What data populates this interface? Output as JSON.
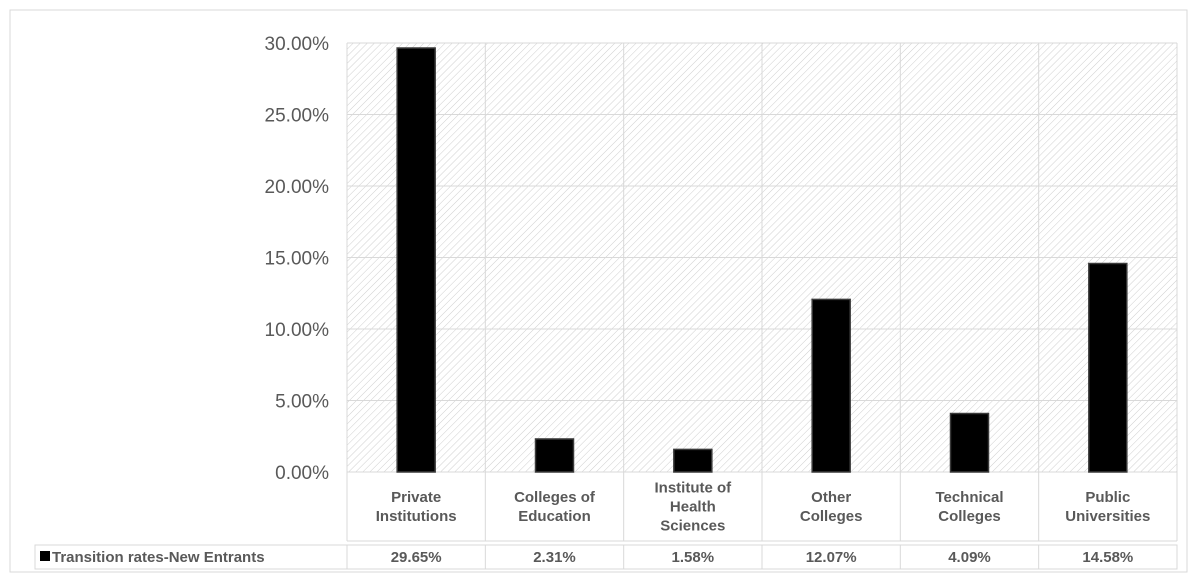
{
  "chart_data": {
    "type": "bar",
    "title": "",
    "xlabel": "",
    "ylabel": "",
    "categories": [
      [
        "Private",
        "Institutions"
      ],
      [
        "Colleges of",
        "Education"
      ],
      [
        "Institute of",
        "Health",
        "Sciences"
      ],
      [
        "Other",
        "Colleges"
      ],
      [
        "Technical",
        "Colleges"
      ],
      [
        "Public",
        "Universities"
      ]
    ],
    "series": [
      {
        "name": "Transition rates-New Entrants",
        "values": [
          29.65,
          2.31,
          1.58,
          12.07,
          4.09,
          14.58
        ],
        "labels": [
          "29.65%",
          "2.31%",
          "1.58%",
          "12.07%",
          "4.09%",
          "14.58%"
        ]
      }
    ],
    "y_ticks": [
      "0.00%",
      "5.00%",
      "10.00%",
      "15.00%",
      "20.00%",
      "25.00%",
      "30.00%"
    ],
    "ylim": [
      0,
      30
    ],
    "grid": true,
    "data_table": true,
    "colors": {
      "bar": "#000000",
      "grid": "#d9d9d9",
      "hatch": "#cfcfcf",
      "axis_text": "#595959"
    }
  }
}
